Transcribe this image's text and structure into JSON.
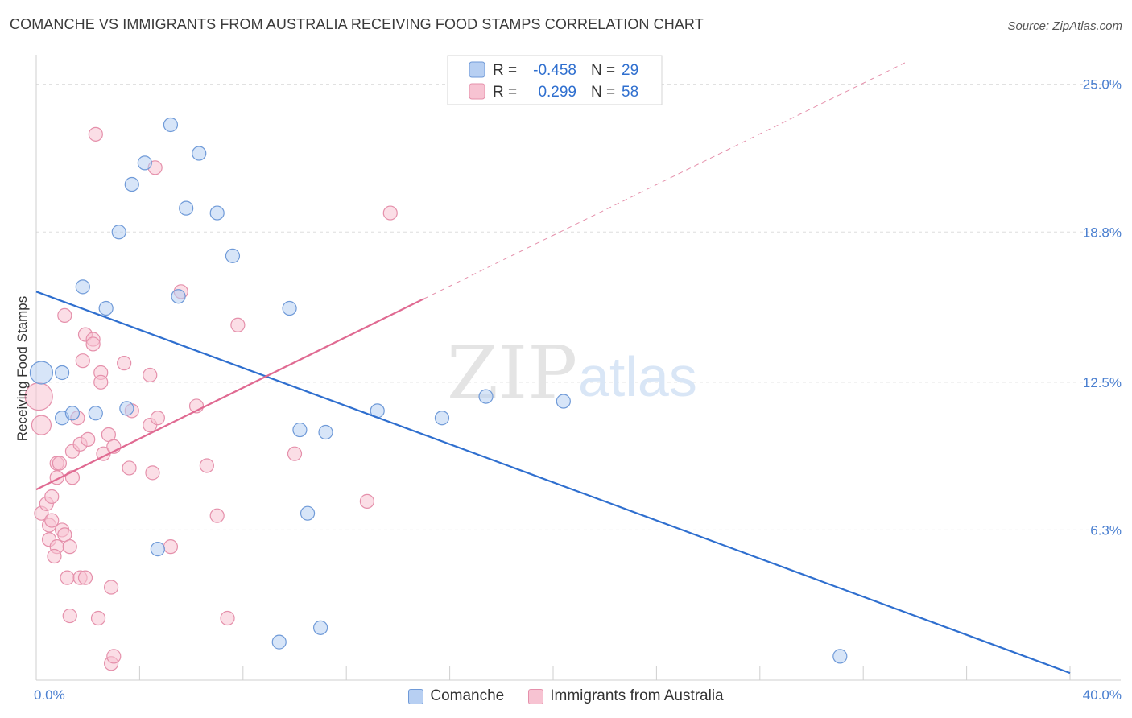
{
  "title": "COMANCHE VS IMMIGRANTS FROM AUSTRALIA RECEIVING FOOD STAMPS CORRELATION CHART",
  "source": "Source: ZipAtlas.com",
  "watermark": {
    "zip": "ZIP",
    "atlas": "atlas"
  },
  "colors": {
    "blue_fill": "#b7cff2",
    "blue_stroke": "#6f9ad8",
    "blue_line": "#2f6fcf",
    "pink_fill": "#f7c3d2",
    "pink_stroke": "#e590ab",
    "pink_line": "#e06a92",
    "tick_text": "#4a7fd0",
    "grid": "#dddddd"
  },
  "legend": {
    "rows": [
      {
        "r_label": "R =",
        "r_value": "-0.458",
        "n_label": "N =",
        "n_value": "29"
      },
      {
        "r_label": "R =",
        "r_value": "0.299",
        "n_label": "N =",
        "n_value": "58"
      }
    ]
  },
  "chart_data": {
    "type": "scatter",
    "title": "COMANCHE VS IMMIGRANTS FROM AUSTRALIA RECEIVING FOOD STAMPS CORRELATION CHART",
    "xlabel": "",
    "ylabel": "Receiving Food Stamps",
    "xlim": [
      0,
      40
    ],
    "ylim": [
      0,
      25.9
    ],
    "x_tick_labels": [
      {
        "value": 0,
        "label": "0.0%"
      },
      {
        "value": 40,
        "label": "40.0%"
      }
    ],
    "y_ticks": [
      {
        "value": 6.3,
        "label": "6.3%"
      },
      {
        "value": 12.5,
        "label": "12.5%"
      },
      {
        "value": 18.8,
        "label": "18.8%"
      },
      {
        "value": 25.0,
        "label": "25.0%"
      }
    ],
    "grid": true,
    "legend_position": "top-center",
    "series": [
      {
        "name": "Comanche",
        "color": "#b7cff2",
        "r": -0.458,
        "n": 29,
        "trend": {
          "x": [
            0,
            40
          ],
          "y": [
            16.3,
            0.3
          ]
        },
        "points": [
          {
            "x": 0.2,
            "y": 12.9,
            "s": 14
          },
          {
            "x": 1.0,
            "y": 12.9
          },
          {
            "x": 1.0,
            "y": 11.0
          },
          {
            "x": 1.4,
            "y": 11.2
          },
          {
            "x": 2.3,
            "y": 11.2
          },
          {
            "x": 1.8,
            "y": 16.5
          },
          {
            "x": 2.7,
            "y": 15.6
          },
          {
            "x": 3.2,
            "y": 18.8
          },
          {
            "x": 3.5,
            "y": 11.4
          },
          {
            "x": 3.7,
            "y": 20.8
          },
          {
            "x": 4.2,
            "y": 21.7
          },
          {
            "x": 5.2,
            "y": 23.3
          },
          {
            "x": 5.8,
            "y": 19.8
          },
          {
            "x": 6.3,
            "y": 22.1
          },
          {
            "x": 7.0,
            "y": 19.6
          },
          {
            "x": 7.6,
            "y": 17.8
          },
          {
            "x": 5.5,
            "y": 16.1
          },
          {
            "x": 9.8,
            "y": 15.6
          },
          {
            "x": 10.2,
            "y": 10.5
          },
          {
            "x": 11.2,
            "y": 10.4
          },
          {
            "x": 13.2,
            "y": 11.3
          },
          {
            "x": 15.7,
            "y": 11.0
          },
          {
            "x": 17.4,
            "y": 11.9
          },
          {
            "x": 20.4,
            "y": 11.7
          },
          {
            "x": 10.5,
            "y": 7.0
          },
          {
            "x": 4.7,
            "y": 5.5
          },
          {
            "x": 11.0,
            "y": 2.2
          },
          {
            "x": 9.4,
            "y": 1.6
          },
          {
            "x": 31.1,
            "y": 1.0
          }
        ]
      },
      {
        "name": "Immigrants from Australia",
        "color": "#f7c3d2",
        "r": 0.299,
        "n": 58,
        "trend": {
          "x": [
            0,
            15.0
          ],
          "y": [
            8.0,
            16.0
          ]
        },
        "trend_extension": {
          "x": [
            15.0,
            40
          ],
          "y": [
            16.0,
            29.3
          ]
        },
        "points": [
          {
            "x": 0.1,
            "y": 11.9,
            "s": 17
          },
          {
            "x": 0.2,
            "y": 10.7,
            "s": 12
          },
          {
            "x": 0.2,
            "y": 7.0
          },
          {
            "x": 0.4,
            "y": 7.4
          },
          {
            "x": 0.5,
            "y": 6.5
          },
          {
            "x": 0.5,
            "y": 5.9
          },
          {
            "x": 0.6,
            "y": 7.7
          },
          {
            "x": 0.6,
            "y": 6.7
          },
          {
            "x": 0.8,
            "y": 5.6
          },
          {
            "x": 0.7,
            "y": 5.2
          },
          {
            "x": 0.8,
            "y": 9.1
          },
          {
            "x": 0.8,
            "y": 8.5
          },
          {
            "x": 0.9,
            "y": 9.1
          },
          {
            "x": 1.0,
            "y": 6.3
          },
          {
            "x": 1.1,
            "y": 6.1
          },
          {
            "x": 1.1,
            "y": 15.3
          },
          {
            "x": 1.2,
            "y": 4.3
          },
          {
            "x": 1.3,
            "y": 5.6
          },
          {
            "x": 1.3,
            "y": 2.7
          },
          {
            "x": 1.4,
            "y": 9.6
          },
          {
            "x": 1.4,
            "y": 8.5
          },
          {
            "x": 1.6,
            "y": 11.0
          },
          {
            "x": 1.7,
            "y": 9.9
          },
          {
            "x": 1.7,
            "y": 4.3
          },
          {
            "x": 1.8,
            "y": 13.4
          },
          {
            "x": 1.9,
            "y": 4.3
          },
          {
            "x": 1.9,
            "y": 14.5
          },
          {
            "x": 2.0,
            "y": 10.1
          },
          {
            "x": 2.2,
            "y": 14.3
          },
          {
            "x": 2.2,
            "y": 14.1
          },
          {
            "x": 2.4,
            "y": 2.6
          },
          {
            "x": 2.5,
            "y": 12.9
          },
          {
            "x": 2.5,
            "y": 12.5
          },
          {
            "x": 2.6,
            "y": 9.5
          },
          {
            "x": 2.3,
            "y": 22.9
          },
          {
            "x": 2.8,
            "y": 10.3
          },
          {
            "x": 2.9,
            "y": 3.9
          },
          {
            "x": 2.9,
            "y": 0.7
          },
          {
            "x": 3.0,
            "y": 1.0
          },
          {
            "x": 3.0,
            "y": 9.8
          },
          {
            "x": 3.4,
            "y": 13.3
          },
          {
            "x": 3.6,
            "y": 8.9
          },
          {
            "x": 3.7,
            "y": 11.3
          },
          {
            "x": 4.4,
            "y": 12.8
          },
          {
            "x": 4.4,
            "y": 10.7
          },
          {
            "x": 4.5,
            "y": 8.7
          },
          {
            "x": 4.6,
            "y": 21.5
          },
          {
            "x": 4.7,
            "y": 11.0
          },
          {
            "x": 5.2,
            "y": 5.6
          },
          {
            "x": 5.6,
            "y": 16.3
          },
          {
            "x": 6.2,
            "y": 11.5
          },
          {
            "x": 6.6,
            "y": 9.0
          },
          {
            "x": 7.0,
            "y": 6.9
          },
          {
            "x": 7.4,
            "y": 2.6
          },
          {
            "x": 7.8,
            "y": 14.9
          },
          {
            "x": 10.0,
            "y": 9.5
          },
          {
            "x": 13.7,
            "y": 19.6
          },
          {
            "x": 12.8,
            "y": 7.5
          }
        ]
      }
    ]
  }
}
